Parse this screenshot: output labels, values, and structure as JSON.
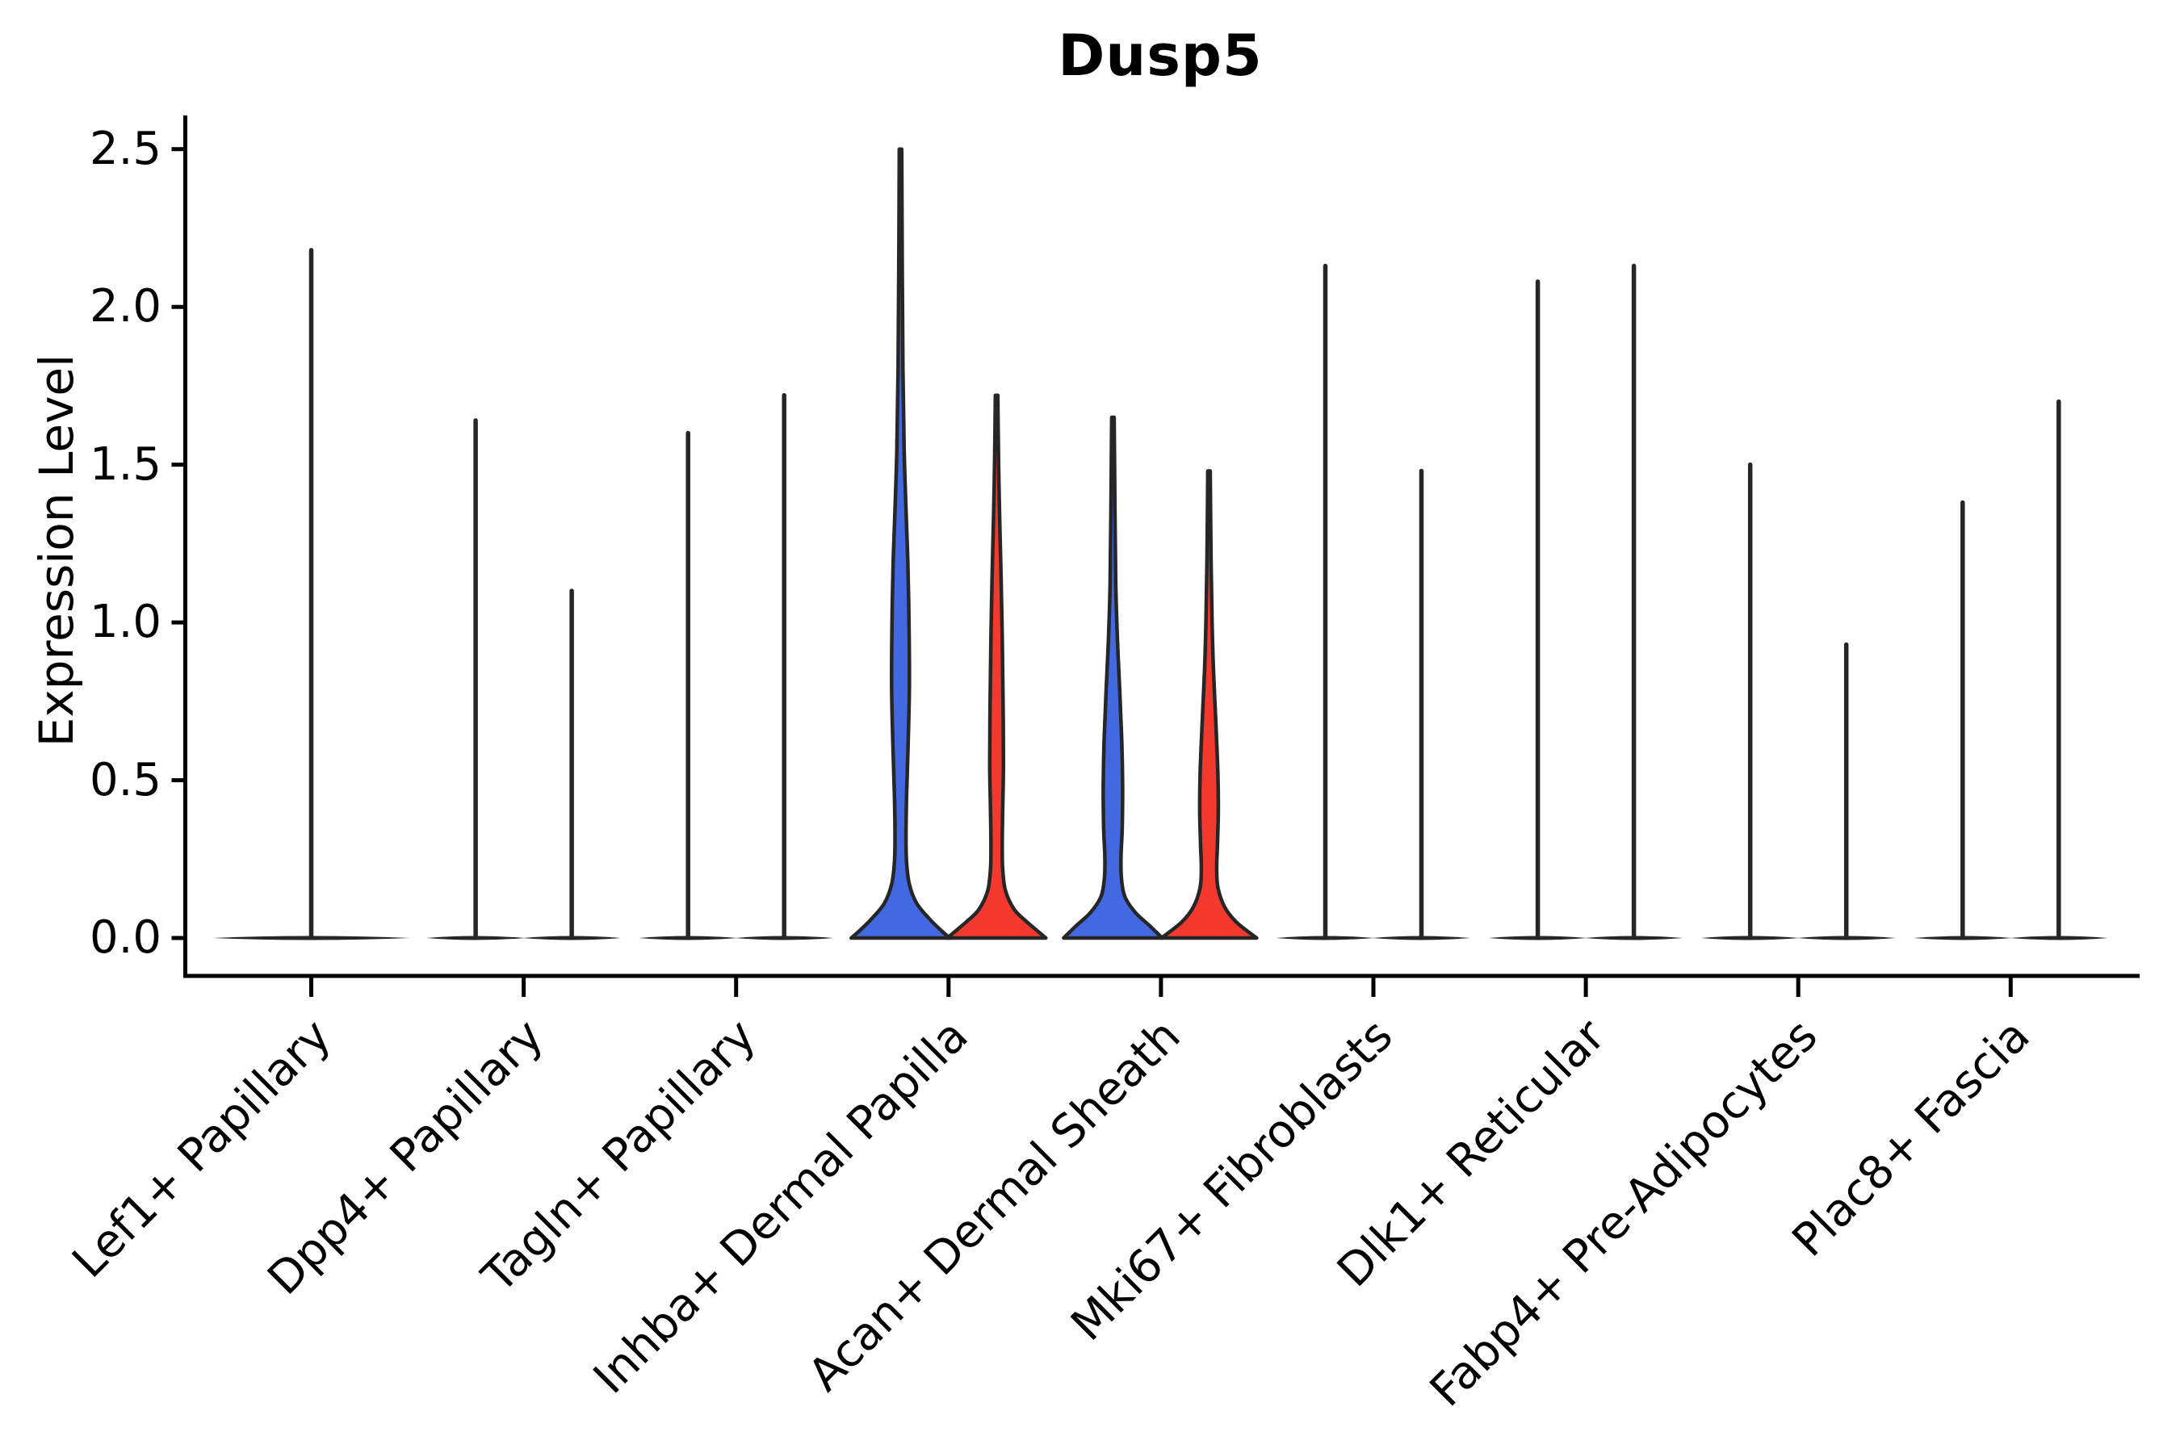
{
  "chart_data": {
    "type": "violin",
    "title": "Dusp5",
    "ylabel": "Expression Level",
    "xlabel": "",
    "ylim": [
      0,
      2.5
    ],
    "y_ticks": [
      "0.0",
      "0.5",
      "1.0",
      "1.5",
      "2.0",
      "2.5"
    ],
    "y_tick_values": [
      0.0,
      0.5,
      1.0,
      1.5,
      2.0,
      2.5
    ],
    "grid": false,
    "legend": "none",
    "outline_color": "#262626",
    "split_colors": {
      "group1": "#4269E1",
      "group2": "#F3392D"
    },
    "categories": [
      "Lef1+ Papillary",
      "Dpp4+ Papillary",
      "Tagln+ Papillary",
      "Inhba+ Dermal Papilla",
      "Acan+ Dermal Sheath",
      "Mki67+ Fibroblasts",
      "Dlk1+ Reticular",
      "Fabp4+ Pre-Adipocytes",
      "Plac8+ Fascia"
    ],
    "violins": [
      {
        "category": "Lef1+ Papillary",
        "group": 1,
        "max_expression": 2.18,
        "filled": false,
        "span": "full",
        "note": "single centered violin, bulk of cells at 0"
      },
      {
        "category": "Dpp4+ Papillary",
        "group": 1,
        "max_expression": 1.64,
        "filled": false
      },
      {
        "category": "Dpp4+ Papillary",
        "group": 2,
        "max_expression": 1.1,
        "filled": false
      },
      {
        "category": "Tagln+ Papillary",
        "group": 1,
        "max_expression": 1.6,
        "filled": false
      },
      {
        "category": "Tagln+ Papillary",
        "group": 2,
        "max_expression": 1.72,
        "filled": false
      },
      {
        "category": "Inhba+ Dermal Papilla",
        "group": 1,
        "max_expression": 2.5,
        "filled": true,
        "fill": "#4269E1",
        "profile": [
          [
            2.5,
            1.5
          ],
          [
            2.1,
            2.2
          ],
          [
            1.8,
            3.0
          ],
          [
            1.55,
            4.5
          ],
          [
            1.38,
            6.5
          ],
          [
            1.2,
            9.0
          ],
          [
            1.0,
            10.5
          ],
          [
            0.8,
            11.0
          ],
          [
            0.62,
            9.5
          ],
          [
            0.45,
            7.5
          ],
          [
            0.32,
            6.8
          ],
          [
            0.24,
            7.5
          ],
          [
            0.17,
            11.0
          ],
          [
            0.11,
            20.0
          ],
          [
            0.06,
            36.0
          ],
          [
            0.02,
            52.0
          ],
          [
            0.0,
            61.0
          ]
        ]
      },
      {
        "category": "Inhba+ Dermal Papilla",
        "group": 2,
        "max_expression": 1.72,
        "filled": true,
        "fill": "#F3392D",
        "profile": [
          [
            1.72,
            1.5
          ],
          [
            1.5,
            2.5
          ],
          [
            1.33,
            3.8
          ],
          [
            1.15,
            5.5
          ],
          [
            0.95,
            7.0
          ],
          [
            0.75,
            8.0
          ],
          [
            0.55,
            8.5
          ],
          [
            0.4,
            7.5
          ],
          [
            0.3,
            7.0
          ],
          [
            0.22,
            7.5
          ],
          [
            0.15,
            11.0
          ],
          [
            0.09,
            22.0
          ],
          [
            0.05,
            38.0
          ],
          [
            0.0,
            61.0
          ]
        ]
      },
      {
        "category": "Acan+ Dermal Sheath",
        "group": 1,
        "max_expression": 1.65,
        "filled": true,
        "fill": "#4269E1",
        "profile": [
          [
            1.65,
            1.5
          ],
          [
            1.35,
            2.5
          ],
          [
            1.12,
            3.5
          ],
          [
            0.95,
            5.5
          ],
          [
            0.78,
            8.5
          ],
          [
            0.62,
            11.0
          ],
          [
            0.48,
            12.0
          ],
          [
            0.35,
            11.5
          ],
          [
            0.26,
            10.0
          ],
          [
            0.19,
            10.5
          ],
          [
            0.13,
            15.0
          ],
          [
            0.08,
            28.0
          ],
          [
            0.04,
            45.0
          ],
          [
            0.0,
            61.0
          ]
        ]
      },
      {
        "category": "Acan+ Dermal Sheath",
        "group": 2,
        "max_expression": 1.48,
        "filled": true,
        "fill": "#F3392D",
        "profile": [
          [
            1.48,
            1.5
          ],
          [
            1.2,
            2.5
          ],
          [
            1.0,
            3.8
          ],
          [
            0.85,
            5.5
          ],
          [
            0.68,
            8.5
          ],
          [
            0.52,
            11.0
          ],
          [
            0.4,
            11.5
          ],
          [
            0.3,
            10.5
          ],
          [
            0.22,
            9.5
          ],
          [
            0.16,
            11.0
          ],
          [
            0.1,
            19.0
          ],
          [
            0.05,
            34.0
          ],
          [
            0.0,
            59.0
          ]
        ]
      },
      {
        "category": "Mki67+ Fibroblasts",
        "group": 1,
        "max_expression": 2.13,
        "filled": false
      },
      {
        "category": "Mki67+ Fibroblasts",
        "group": 2,
        "max_expression": 1.48,
        "filled": false
      },
      {
        "category": "Dlk1+ Reticular",
        "group": 1,
        "max_expression": 2.08,
        "filled": false
      },
      {
        "category": "Dlk1+ Reticular",
        "group": 2,
        "max_expression": 2.13,
        "filled": false
      },
      {
        "category": "Fabp4+ Pre-Adipocytes",
        "group": 1,
        "max_expression": 1.5,
        "filled": false
      },
      {
        "category": "Fabp4+ Pre-Adipocytes",
        "group": 2,
        "max_expression": 0.93,
        "filled": false
      },
      {
        "category": "Plac8+ Fascia",
        "group": 1,
        "max_expression": 1.38,
        "filled": false
      },
      {
        "category": "Plac8+ Fascia",
        "group": 2,
        "max_expression": 1.7,
        "filled": false
      }
    ]
  }
}
